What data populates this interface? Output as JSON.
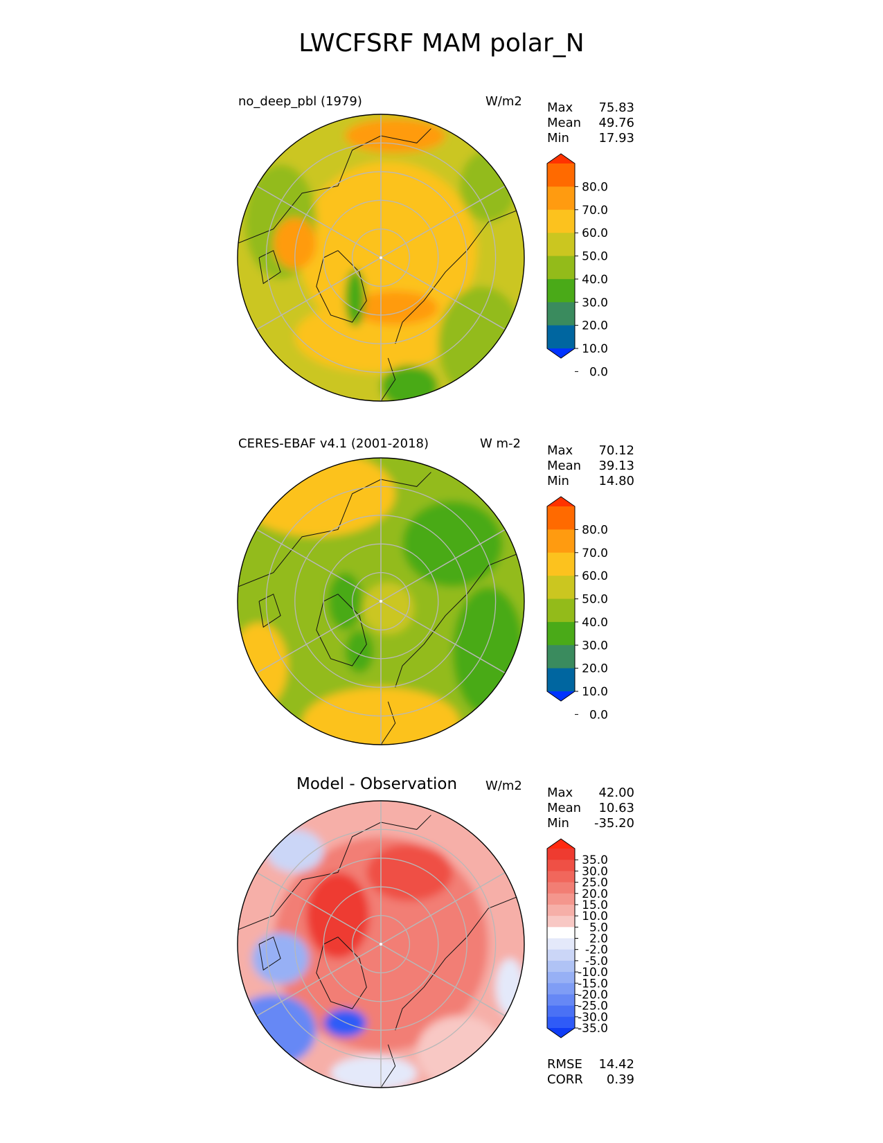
{
  "title": "LWCFSRF MAM polar_N",
  "panels": [
    {
      "name": "no_deep_pbl (1979)",
      "units": "W/m2",
      "stats": [
        {
          "label": "Max",
          "value": "75.83"
        },
        {
          "label": "Mean",
          "value": "49.76"
        },
        {
          "label": "Min",
          "value": "17.93"
        }
      ],
      "colorbar_ticks": [
        "80.0",
        "70.0",
        "60.0",
        "50.0",
        "40.0",
        "30.0",
        "20.0",
        "10.0",
        "0.0"
      ]
    },
    {
      "name": "CERES-EBAF v4.1 (2001-2018)",
      "units": "W m-2",
      "stats": [
        {
          "label": "Max",
          "value": "70.12"
        },
        {
          "label": "Mean",
          "value": "39.13"
        },
        {
          "label": "Min",
          "value": "14.80"
        }
      ],
      "colorbar_ticks": [
        "80.0",
        "70.0",
        "60.0",
        "50.0",
        "40.0",
        "30.0",
        "20.0",
        "10.0",
        "0.0"
      ]
    },
    {
      "name": "Model - Observation",
      "units": "W/m2",
      "stats": [
        {
          "label": "Max",
          "value": "42.00"
        },
        {
          "label": "Mean",
          "value": "10.63"
        },
        {
          "label": "Min",
          "value": "-35.20"
        }
      ],
      "colorbar_ticks": [
        "35.0",
        "30.0",
        "25.0",
        "20.0",
        "15.0",
        "10.0",
        "5.0",
        "2.0",
        "-2.0",
        "-5.0",
        "-10.0",
        "-15.0",
        "-20.0",
        "-25.0",
        "-30.0",
        "-35.0"
      ],
      "metrics": [
        {
          "label": "RMSE",
          "value": "14.42"
        },
        {
          "label": "CORR",
          "value": "0.39"
        }
      ]
    }
  ],
  "colors": {
    "sequential": [
      "#0033ff",
      "#0066a0",
      "#3a8b5e",
      "#4aaa18",
      "#93bb1a",
      "#cbc620",
      "#fcc21e",
      "#ff9b10",
      "#ff6a00",
      "#ff3300"
    ],
    "diverging": [
      "#0f3cf5",
      "#2f5bf7",
      "#4a71f5",
      "#6688f5",
      "#7f9df5",
      "#97b0f5",
      "#b0c3f5",
      "#cbd6f7",
      "#e4e9fa",
      "#ffffff",
      "#fbe2e0",
      "#f8c8c4",
      "#f6afa8",
      "#f4968d",
      "#f27e74",
      "#f1675c",
      "#ef5045",
      "#ee3b30",
      "#ff2a10"
    ]
  },
  "chart_data": [
    {
      "type": "heatmap",
      "projection": "north-polar-stereographic",
      "title": "no_deep_pbl (1979)",
      "units": "W/m2",
      "colorbar_levels": [
        0,
        10,
        20,
        30,
        40,
        50,
        60,
        70,
        80
      ],
      "colorbar_extend": "both",
      "stats": {
        "max": 75.83,
        "mean": 49.76,
        "min": 17.93
      }
    },
    {
      "type": "heatmap",
      "projection": "north-polar-stereographic",
      "title": "CERES-EBAF v4.1 (2001-2018)",
      "units": "W m-2",
      "colorbar_levels": [
        0,
        10,
        20,
        30,
        40,
        50,
        60,
        70,
        80
      ],
      "colorbar_extend": "both",
      "stats": {
        "max": 70.12,
        "mean": 39.13,
        "min": 14.8
      }
    },
    {
      "type": "heatmap",
      "projection": "north-polar-stereographic",
      "title": "Model - Observation",
      "units": "W/m2",
      "colorbar_levels": [
        -35,
        -30,
        -25,
        -20,
        -15,
        -10,
        -5,
        -2,
        2,
        5,
        10,
        15,
        20,
        25,
        30,
        35
      ],
      "colorbar_extend": "both",
      "stats": {
        "max": 42.0,
        "mean": 10.63,
        "min": -35.2
      },
      "metrics": {
        "rmse": 14.42,
        "corr": 0.39
      }
    }
  ]
}
